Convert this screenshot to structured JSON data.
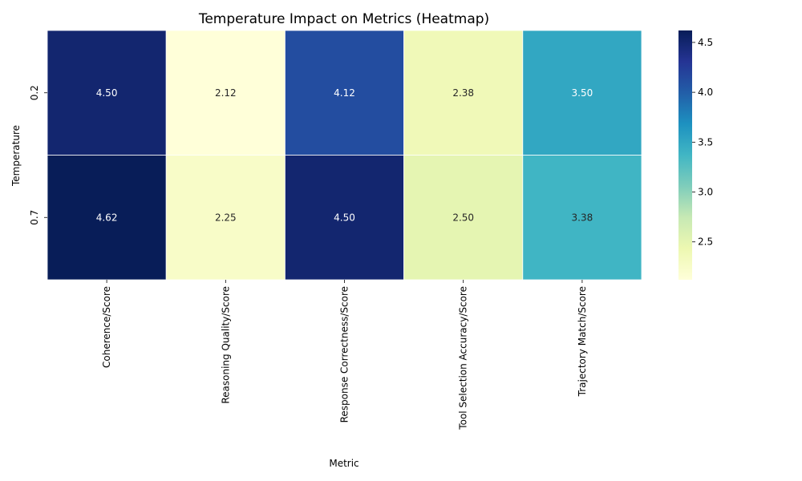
{
  "chart_data": {
    "type": "heatmap",
    "title": "Temperature Impact on Metrics (Heatmap)",
    "xlabel": "Metric",
    "ylabel": "Temperature",
    "x_categories": [
      "Coherence/Score",
      "Reasoning Quality/Score",
      "Response Correctness/Score",
      "Tool Selection Accuracy/Score",
      "Trajectory Match/Score"
    ],
    "y_categories": [
      "0.2",
      "0.7"
    ],
    "values": [
      [
        4.5,
        2.12,
        4.12,
        2.38,
        3.5
      ],
      [
        4.62,
        2.25,
        4.5,
        2.5,
        3.38
      ]
    ],
    "value_labels": [
      [
        "4.50",
        "2.12",
        "4.12",
        "2.38",
        "3.50"
      ],
      [
        "4.62",
        "2.25",
        "4.50",
        "2.50",
        "3.38"
      ]
    ],
    "colorbar": {
      "colormap": "YlGnBu",
      "range": [
        2.12,
        4.62
      ],
      "ticks": [
        2.5,
        3.0,
        3.5,
        4.0,
        4.5
      ],
      "tick_labels": [
        "2.5",
        "3.0",
        "3.5",
        "4.0",
        "4.5"
      ]
    }
  }
}
